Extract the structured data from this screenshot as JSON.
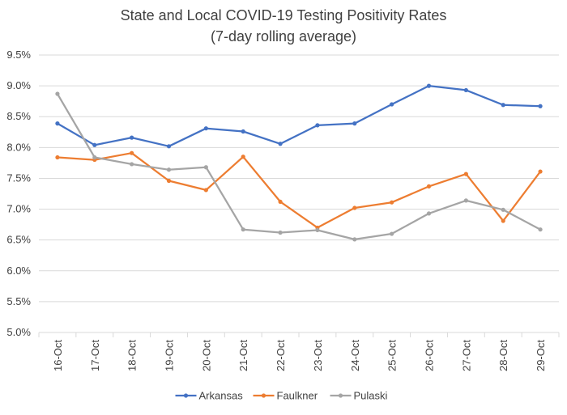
{
  "chart_data": {
    "type": "line",
    "title": "State and Local COVID-19 Testing Positivity Rates",
    "subtitle": "(7-day rolling average)",
    "xlabel": "",
    "ylabel": "",
    "categories": [
      "16-Oct",
      "17-Oct",
      "18-Oct",
      "19-Oct",
      "20-Oct",
      "21-Oct",
      "22-Oct",
      "23-Oct",
      "24-Oct",
      "25-Oct",
      "26-Oct",
      "27-Oct",
      "28-Oct",
      "29-Oct"
    ],
    "ylim": [
      5.0,
      9.5
    ],
    "yticks": [
      5.0,
      5.5,
      6.0,
      6.5,
      7.0,
      7.5,
      8.0,
      8.5,
      9.0,
      9.5
    ],
    "ytick_labels": [
      "5.0%",
      "5.5%",
      "6.0%",
      "6.5%",
      "7.0%",
      "7.5%",
      "8.0%",
      "8.5%",
      "9.0%",
      "9.5%"
    ],
    "grid": true,
    "legend_position": "bottom",
    "series": [
      {
        "name": "Arkansas",
        "color": "#4472c4",
        "values": [
          8.39,
          8.04,
          8.16,
          8.02,
          8.31,
          8.26,
          8.06,
          8.36,
          8.39,
          8.7,
          9.0,
          8.93,
          8.69,
          8.67
        ]
      },
      {
        "name": "Faulkner",
        "color": "#ed7d31",
        "values": [
          7.84,
          7.8,
          7.91,
          7.46,
          7.31,
          7.85,
          7.12,
          6.7,
          7.02,
          7.11,
          7.37,
          7.57,
          6.81,
          7.61
        ]
      },
      {
        "name": "Pulaski",
        "color": "#a5a5a5",
        "values": [
          8.87,
          7.84,
          7.73,
          7.64,
          7.68,
          6.67,
          6.62,
          6.66,
          6.51,
          6.6,
          6.93,
          7.14,
          6.99,
          6.67
        ]
      }
    ]
  }
}
